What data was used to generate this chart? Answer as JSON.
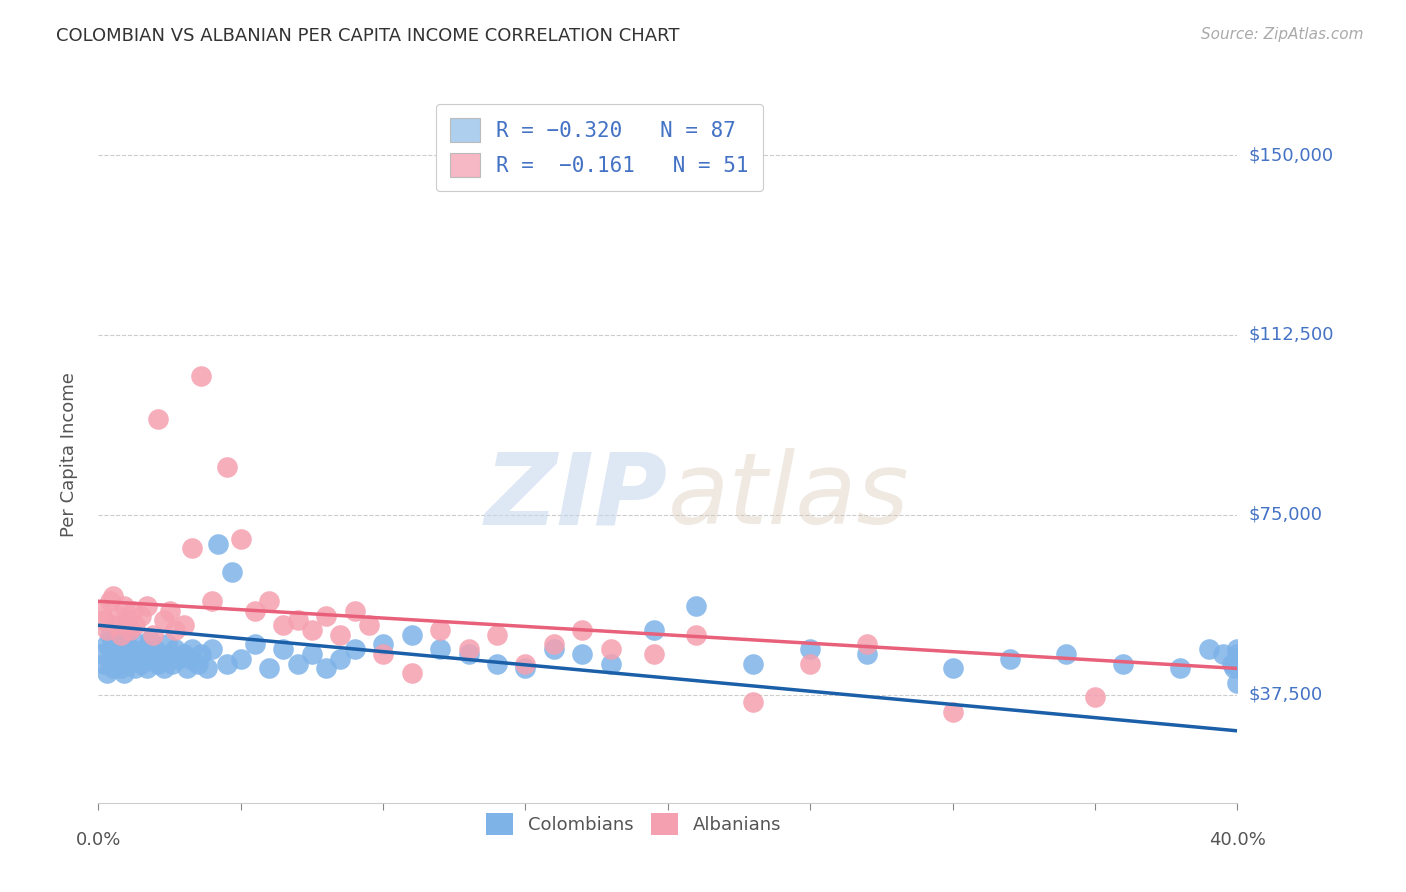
{
  "title": "COLOMBIAN VS ALBANIAN PER CAPITA INCOME CORRELATION CHART",
  "source": "Source: ZipAtlas.com",
  "ylabel": "Per Capita Income",
  "watermark_zip": "ZIP",
  "watermark_atlas": "atlas",
  "ytick_labels": [
    "$37,500",
    "$75,000",
    "$112,500",
    "$150,000"
  ],
  "ytick_values": [
    37500,
    75000,
    112500,
    150000
  ],
  "y_min": 15000,
  "y_max": 160000,
  "x_min": 0.0,
  "x_max": 0.4,
  "colombian_color": "#7eb3e8",
  "albanian_color": "#f5a0b0",
  "colombian_line_color": "#1a5fa8",
  "albanian_line_color": "#e8607a",
  "legend_box_color_col": "#aecfee",
  "legend_box_color_alb": "#f5b8c4",
  "R_colombian": -0.32,
  "N_colombian": 87,
  "R_albanian": -0.161,
  "N_albanian": 51,
  "colombian_intercept": 52000,
  "colombian_slope": -55000,
  "albanian_intercept": 57000,
  "albanian_slope": -35000,
  "colombian_x": [
    0.001,
    0.002,
    0.003,
    0.003,
    0.004,
    0.004,
    0.005,
    0.005,
    0.005,
    0.006,
    0.006,
    0.007,
    0.007,
    0.008,
    0.008,
    0.008,
    0.009,
    0.009,
    0.01,
    0.01,
    0.011,
    0.012,
    0.012,
    0.013,
    0.014,
    0.015,
    0.016,
    0.017,
    0.017,
    0.018,
    0.019,
    0.02,
    0.021,
    0.022,
    0.023,
    0.024,
    0.025,
    0.026,
    0.027,
    0.028,
    0.03,
    0.031,
    0.032,
    0.033,
    0.035,
    0.036,
    0.038,
    0.04,
    0.042,
    0.045,
    0.047,
    0.05,
    0.055,
    0.06,
    0.065,
    0.07,
    0.075,
    0.08,
    0.085,
    0.09,
    0.1,
    0.11,
    0.12,
    0.13,
    0.14,
    0.15,
    0.16,
    0.17,
    0.18,
    0.195,
    0.21,
    0.23,
    0.25,
    0.27,
    0.3,
    0.32,
    0.34,
    0.36,
    0.38,
    0.39,
    0.395,
    0.398,
    0.399,
    0.4,
    0.4,
    0.4,
    0.4
  ],
  "colombian_y": [
    46000,
    44000,
    48000,
    42000,
    50000,
    47000,
    45000,
    43000,
    49000,
    46000,
    44000,
    48000,
    45000,
    47000,
    43000,
    50000,
    46000,
    42000,
    48000,
    44000,
    47000,
    45000,
    49000,
    43000,
    46000,
    44000,
    47000,
    45000,
    43000,
    49000,
    46000,
    47000,
    44000,
    45000,
    43000,
    48000,
    46000,
    44000,
    47000,
    45000,
    46000,
    43000,
    45000,
    47000,
    44000,
    46000,
    43000,
    47000,
    69000,
    44000,
    63000,
    45000,
    48000,
    43000,
    47000,
    44000,
    46000,
    43000,
    45000,
    47000,
    48000,
    50000,
    47000,
    46000,
    44000,
    43000,
    47000,
    46000,
    44000,
    51000,
    56000,
    44000,
    47000,
    46000,
    43000,
    45000,
    46000,
    44000,
    43000,
    47000,
    46000,
    44000,
    43000,
    47000,
    45000,
    46000,
    40000
  ],
  "albanian_x": [
    0.001,
    0.002,
    0.003,
    0.004,
    0.005,
    0.006,
    0.007,
    0.008,
    0.009,
    0.01,
    0.011,
    0.012,
    0.013,
    0.015,
    0.017,
    0.019,
    0.021,
    0.023,
    0.025,
    0.027,
    0.03,
    0.033,
    0.036,
    0.04,
    0.045,
    0.05,
    0.055,
    0.06,
    0.065,
    0.07,
    0.075,
    0.08,
    0.085,
    0.09,
    0.095,
    0.1,
    0.11,
    0.12,
    0.13,
    0.14,
    0.15,
    0.16,
    0.17,
    0.18,
    0.195,
    0.21,
    0.23,
    0.25,
    0.27,
    0.3,
    0.35
  ],
  "albanian_y": [
    55000,
    53000,
    51000,
    57000,
    58000,
    52000,
    54000,
    50000,
    56000,
    53000,
    51000,
    55000,
    52000,
    54000,
    56000,
    50000,
    95000,
    53000,
    55000,
    51000,
    52000,
    68000,
    104000,
    57000,
    85000,
    70000,
    55000,
    57000,
    52000,
    53000,
    51000,
    54000,
    50000,
    55000,
    52000,
    46000,
    42000,
    51000,
    47000,
    50000,
    44000,
    48000,
    51000,
    47000,
    46000,
    50000,
    36000,
    44000,
    48000,
    34000,
    37000
  ]
}
